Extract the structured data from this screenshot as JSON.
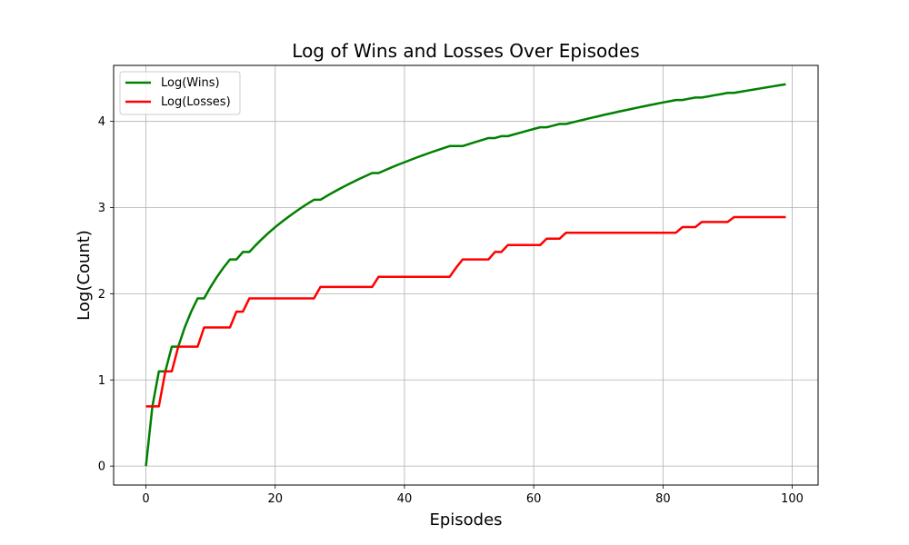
{
  "chart_data": {
    "type": "line",
    "title": "Log of Wins and Losses Over Episodes",
    "xlabel": "Episodes",
    "ylabel": "Log(Count)",
    "xlim": [
      -5,
      104
    ],
    "ylim": [
      -0.22,
      4.65
    ],
    "xticks": [
      0,
      20,
      40,
      60,
      80,
      100
    ],
    "yticks": [
      0,
      1,
      2,
      3,
      4
    ],
    "grid": true,
    "legend_position": "upper-left",
    "x": [
      0,
      1,
      2,
      3,
      4,
      5,
      6,
      7,
      8,
      9,
      10,
      11,
      12,
      13,
      14,
      15,
      16,
      17,
      18,
      19,
      20,
      21,
      22,
      23,
      24,
      25,
      26,
      27,
      28,
      29,
      30,
      31,
      32,
      33,
      34,
      35,
      36,
      37,
      38,
      39,
      40,
      41,
      42,
      43,
      44,
      45,
      46,
      47,
      48,
      49,
      50,
      51,
      52,
      53,
      54,
      55,
      56,
      57,
      58,
      59,
      60,
      61,
      62,
      63,
      64,
      65,
      66,
      67,
      68,
      69,
      70,
      71,
      72,
      73,
      74,
      75,
      76,
      77,
      78,
      79,
      80,
      81,
      82,
      83,
      84,
      85,
      86,
      87,
      88,
      89,
      90,
      91,
      92,
      93,
      94,
      95,
      96,
      97,
      98,
      99
    ],
    "series": [
      {
        "name": "Log(Wins)",
        "color": "#008000",
        "values": [
          0,
          0.693,
          1.099,
          1.099,
          1.386,
          1.386,
          1.609,
          1.792,
          1.946,
          1.946,
          2.079,
          2.197,
          2.303,
          2.398,
          2.398,
          2.485,
          2.485,
          2.565,
          2.639,
          2.708,
          2.773,
          2.833,
          2.89,
          2.944,
          2.996,
          3.045,
          3.091,
          3.091,
          3.135,
          3.178,
          3.219,
          3.258,
          3.296,
          3.332,
          3.367,
          3.401,
          3.401,
          3.434,
          3.466,
          3.497,
          3.526,
          3.555,
          3.584,
          3.611,
          3.638,
          3.664,
          3.689,
          3.714,
          3.714,
          3.714,
          3.738,
          3.761,
          3.784,
          3.807,
          3.807,
          3.829,
          3.829,
          3.85,
          3.871,
          3.892,
          3.912,
          3.932,
          3.932,
          3.951,
          3.97,
          3.97,
          3.989,
          4.007,
          4.025,
          4.043,
          4.06,
          4.078,
          4.094,
          4.111,
          4.127,
          4.143,
          4.159,
          4.174,
          4.19,
          4.205,
          4.22,
          4.234,
          4.248,
          4.248,
          4.263,
          4.277,
          4.277,
          4.29,
          4.304,
          4.317,
          4.331,
          4.331,
          4.344,
          4.357,
          4.369,
          4.382,
          4.394,
          4.407,
          4.419,
          4.431
        ]
      },
      {
        "name": "Log(Losses)",
        "color": "#ff0000",
        "values": [
          0.693,
          0.693,
          0.693,
          1.099,
          1.099,
          1.386,
          1.386,
          1.386,
          1.386,
          1.609,
          1.609,
          1.609,
          1.609,
          1.609,
          1.792,
          1.792,
          1.946,
          1.946,
          1.946,
          1.946,
          1.946,
          1.946,
          1.946,
          1.946,
          1.946,
          1.946,
          1.946,
          2.079,
          2.079,
          2.079,
          2.079,
          2.079,
          2.079,
          2.079,
          2.079,
          2.079,
          2.197,
          2.197,
          2.197,
          2.197,
          2.197,
          2.197,
          2.197,
          2.197,
          2.197,
          2.197,
          2.197,
          2.197,
          2.303,
          2.398,
          2.398,
          2.398,
          2.398,
          2.398,
          2.485,
          2.485,
          2.565,
          2.565,
          2.565,
          2.565,
          2.565,
          2.565,
          2.639,
          2.639,
          2.639,
          2.708,
          2.708,
          2.708,
          2.708,
          2.708,
          2.708,
          2.708,
          2.708,
          2.708,
          2.708,
          2.708,
          2.708,
          2.708,
          2.708,
          2.708,
          2.708,
          2.708,
          2.708,
          2.773,
          2.773,
          2.773,
          2.833,
          2.833,
          2.833,
          2.833,
          2.833,
          2.89,
          2.89,
          2.89,
          2.89,
          2.89,
          2.89,
          2.89,
          2.89,
          2.89
        ]
      }
    ]
  }
}
